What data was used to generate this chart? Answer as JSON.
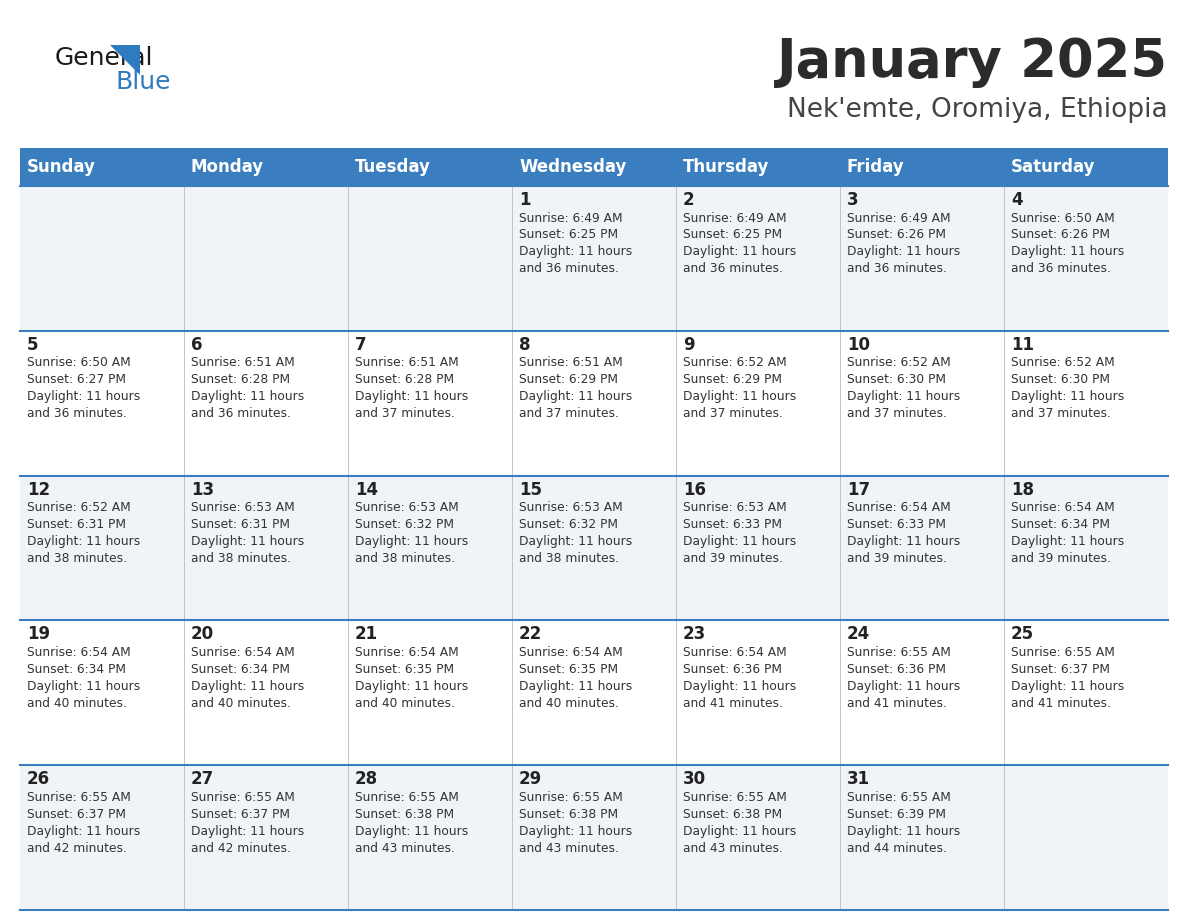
{
  "title": "January 2025",
  "subtitle": "Nek'emte, Oromiya, Ethiopia",
  "header_bg_color": "#3A7EBF",
  "header_text_color": "#FFFFFF",
  "title_color": "#2B2B2B",
  "subtitle_color": "#444444",
  "day_number_color": "#222222",
  "info_text_color": "#333333",
  "line_color": "#3A7EBF",
  "background_color": "#FFFFFF",
  "cell_bg_light": "#F0F4F8",
  "cell_bg_white": "#FFFFFF",
  "day_headers": [
    "Sunday",
    "Monday",
    "Tuesday",
    "Wednesday",
    "Thursday",
    "Friday",
    "Saturday"
  ],
  "calendar": [
    [
      {
        "day": "",
        "sunrise": "",
        "sunset": "",
        "daylight_min": ""
      },
      {
        "day": "",
        "sunrise": "",
        "sunset": "",
        "daylight_min": ""
      },
      {
        "day": "",
        "sunrise": "",
        "sunset": "",
        "daylight_min": ""
      },
      {
        "day": "1",
        "sunrise": "6:49 AM",
        "sunset": "6:25 PM",
        "daylight_min": "36 minutes."
      },
      {
        "day": "2",
        "sunrise": "6:49 AM",
        "sunset": "6:25 PM",
        "daylight_min": "36 minutes."
      },
      {
        "day": "3",
        "sunrise": "6:49 AM",
        "sunset": "6:26 PM",
        "daylight_min": "36 minutes."
      },
      {
        "day": "4",
        "sunrise": "6:50 AM",
        "sunset": "6:26 PM",
        "daylight_min": "36 minutes."
      }
    ],
    [
      {
        "day": "5",
        "sunrise": "6:50 AM",
        "sunset": "6:27 PM",
        "daylight_min": "36 minutes."
      },
      {
        "day": "6",
        "sunrise": "6:51 AM",
        "sunset": "6:28 PM",
        "daylight_min": "36 minutes."
      },
      {
        "day": "7",
        "sunrise": "6:51 AM",
        "sunset": "6:28 PM",
        "daylight_min": "37 minutes."
      },
      {
        "day": "8",
        "sunrise": "6:51 AM",
        "sunset": "6:29 PM",
        "daylight_min": "37 minutes."
      },
      {
        "day": "9",
        "sunrise": "6:52 AM",
        "sunset": "6:29 PM",
        "daylight_min": "37 minutes."
      },
      {
        "day": "10",
        "sunrise": "6:52 AM",
        "sunset": "6:30 PM",
        "daylight_min": "37 minutes."
      },
      {
        "day": "11",
        "sunrise": "6:52 AM",
        "sunset": "6:30 PM",
        "daylight_min": "37 minutes."
      }
    ],
    [
      {
        "day": "12",
        "sunrise": "6:52 AM",
        "sunset": "6:31 PM",
        "daylight_min": "38 minutes."
      },
      {
        "day": "13",
        "sunrise": "6:53 AM",
        "sunset": "6:31 PM",
        "daylight_min": "38 minutes."
      },
      {
        "day": "14",
        "sunrise": "6:53 AM",
        "sunset": "6:32 PM",
        "daylight_min": "38 minutes."
      },
      {
        "day": "15",
        "sunrise": "6:53 AM",
        "sunset": "6:32 PM",
        "daylight_min": "38 minutes."
      },
      {
        "day": "16",
        "sunrise": "6:53 AM",
        "sunset": "6:33 PM",
        "daylight_min": "39 minutes."
      },
      {
        "day": "17",
        "sunrise": "6:54 AM",
        "sunset": "6:33 PM",
        "daylight_min": "39 minutes."
      },
      {
        "day": "18",
        "sunrise": "6:54 AM",
        "sunset": "6:34 PM",
        "daylight_min": "39 minutes."
      }
    ],
    [
      {
        "day": "19",
        "sunrise": "6:54 AM",
        "sunset": "6:34 PM",
        "daylight_min": "40 minutes."
      },
      {
        "day": "20",
        "sunrise": "6:54 AM",
        "sunset": "6:34 PM",
        "daylight_min": "40 minutes."
      },
      {
        "day": "21",
        "sunrise": "6:54 AM",
        "sunset": "6:35 PM",
        "daylight_min": "40 minutes."
      },
      {
        "day": "22",
        "sunrise": "6:54 AM",
        "sunset": "6:35 PM",
        "daylight_min": "40 minutes."
      },
      {
        "day": "23",
        "sunrise": "6:54 AM",
        "sunset": "6:36 PM",
        "daylight_min": "41 minutes."
      },
      {
        "day": "24",
        "sunrise": "6:55 AM",
        "sunset": "6:36 PM",
        "daylight_min": "41 minutes."
      },
      {
        "day": "25",
        "sunrise": "6:55 AM",
        "sunset": "6:37 PM",
        "daylight_min": "41 minutes."
      }
    ],
    [
      {
        "day": "26",
        "sunrise": "6:55 AM",
        "sunset": "6:37 PM",
        "daylight_min": "42 minutes."
      },
      {
        "day": "27",
        "sunrise": "6:55 AM",
        "sunset": "6:37 PM",
        "daylight_min": "42 minutes."
      },
      {
        "day": "28",
        "sunrise": "6:55 AM",
        "sunset": "6:38 PM",
        "daylight_min": "43 minutes."
      },
      {
        "day": "29",
        "sunrise": "6:55 AM",
        "sunset": "6:38 PM",
        "daylight_min": "43 minutes."
      },
      {
        "day": "30",
        "sunrise": "6:55 AM",
        "sunset": "6:38 PM",
        "daylight_min": "43 minutes."
      },
      {
        "day": "31",
        "sunrise": "6:55 AM",
        "sunset": "6:39 PM",
        "daylight_min": "44 minutes."
      },
      {
        "day": "",
        "sunrise": "",
        "sunset": "",
        "daylight_min": ""
      }
    ]
  ]
}
